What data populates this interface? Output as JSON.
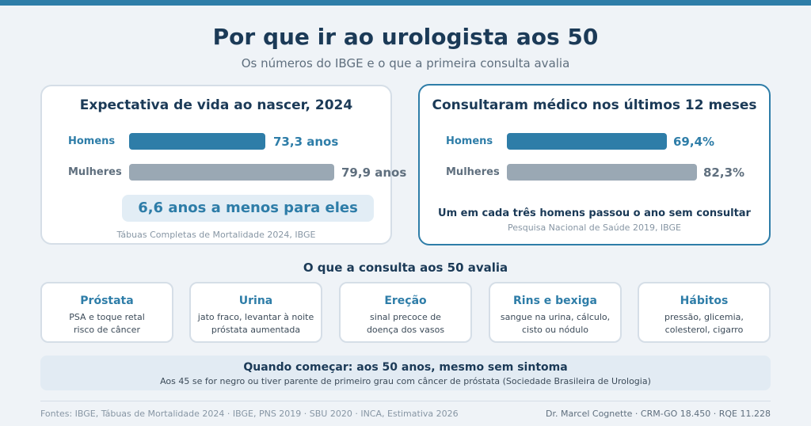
{
  "header": {
    "title": "Por que ir ao urologista aos 50",
    "subtitle": "Os números do IBGE e o que a primeira consulta avalia"
  },
  "life_expectancy": {
    "title": "Expectativa de vida ao nascer, 2024",
    "men_label": "Homens",
    "men_value": "73,3 anos",
    "women_label": "Mulheres",
    "women_value": "79,9 anos",
    "callout": "6,6 anos a menos para eles",
    "source": "Tábuas Completas de Mortalidade 2024, IBGE"
  },
  "consultations": {
    "title": "Consultaram médico nos últimos 12 meses",
    "men_label": "Homens",
    "men_value": "69,4%",
    "women_label": "Mulheres",
    "women_value": "82,3%",
    "note": "Um em cada três homens passou o ano sem consultar",
    "source": "Pesquisa Nacional de Saúde 2019, IBGE"
  },
  "chart_data": [
    {
      "type": "bar",
      "title": "Expectativa de vida ao nascer, 2024",
      "categories": [
        "Homens",
        "Mulheres"
      ],
      "values": [
        73.3,
        79.9
      ],
      "value_labels": [
        "73,3 anos",
        "79,9 anos"
      ],
      "colors": [
        "#2e7da8",
        "#9aa8b4"
      ]
    },
    {
      "type": "bar",
      "title": "Consultaram médico nos últimos 12 meses",
      "categories": [
        "Homens",
        "Mulheres"
      ],
      "values": [
        69.4,
        82.3
      ],
      "value_labels": [
        "69,4%",
        "82,3%"
      ],
      "colors": [
        "#2e7da8",
        "#9aa8b4"
      ]
    }
  ],
  "evaluation": {
    "title": "O que a consulta aos 50 avalia",
    "items": [
      {
        "title": "Próstata",
        "line1": "PSA e toque retal",
        "line2": "risco de câncer"
      },
      {
        "title": "Urina",
        "line1": "jato fraco, levantar à noite",
        "line2": "próstata aumentada"
      },
      {
        "title": "Ereção",
        "line1": "sinal precoce de",
        "line2": "doença dos vasos"
      },
      {
        "title": "Rins e bexiga",
        "line1": "sangue na urina, cálculo,",
        "line2": "cisto ou nódulo"
      },
      {
        "title": "Hábitos",
        "line1": "pressão, glicemia,",
        "line2": "colesterol, cigarro"
      }
    ]
  },
  "banner": {
    "title": "Quando começar: aos 50 anos, mesmo sem sintoma",
    "subtitle": "Aos 45 se for negro ou tiver parente de primeiro grau com câncer de próstata (Sociedade Brasileira de Urologia)"
  },
  "footer": {
    "sources": "Fontes: IBGE, Tábuas de Mortalidade 2024 · IBGE, PNS 2019 · SBU 2020 · INCA, Estimativa 2026",
    "author": "Dr. Marcel Cognette · CRM-GO 18.450 · RQE 11.228"
  },
  "colors": {
    "accent": "#2e7da8",
    "dark": "#1b3a57",
    "muted": "#9aa8b4",
    "background": "#eff3f7"
  }
}
